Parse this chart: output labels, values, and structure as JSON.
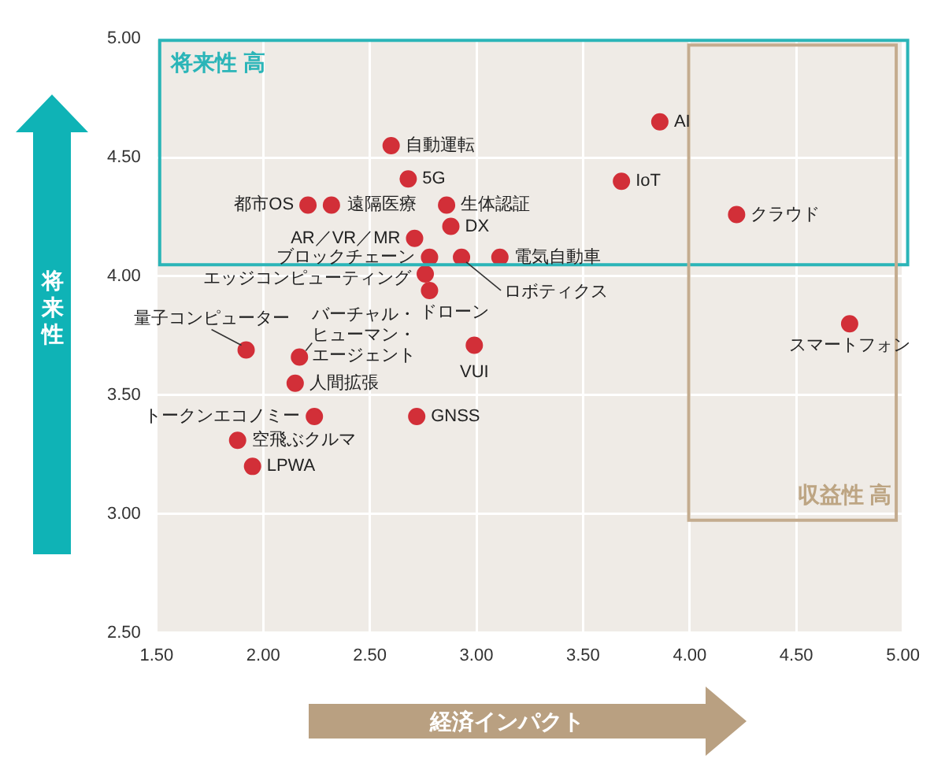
{
  "chart_data": {
    "type": "scatter",
    "xlabel": "経済インパクト",
    "ylabel": "将来性",
    "x": [
      3.86,
      3.68,
      4.22,
      4.75,
      2.6,
      2.68,
      2.21,
      2.32,
      2.86,
      2.88,
      2.71,
      2.78,
      2.93,
      3.11,
      2.76,
      2.78,
      1.92,
      2.17,
      2.99,
      2.15,
      2.24,
      2.72,
      1.88,
      1.95
    ],
    "values": [
      4.65,
      4.4,
      4.26,
      3.8,
      4.55,
      4.41,
      4.3,
      4.3,
      4.3,
      4.21,
      4.16,
      4.08,
      4.08,
      4.08,
      4.01,
      3.94,
      3.69,
      3.66,
      3.71,
      3.55,
      3.41,
      3.41,
      3.31,
      3.2
    ],
    "color": "#d22f38",
    "marker": "circle",
    "grid": true,
    "legend": false,
    "xlim": [
      1.5,
      5
    ],
    "ylim": [
      2.5,
      5
    ],
    "xticks": [
      {
        "value": 1.5,
        "label": "1.50"
      },
      {
        "value": 2,
        "label": "2.00"
      },
      {
        "value": 2.5,
        "label": "2.50"
      },
      {
        "value": 3,
        "label": "3.00"
      },
      {
        "value": 3.5,
        "label": "3.50"
      },
      {
        "value": 4,
        "label": "4.00"
      },
      {
        "value": 4.5,
        "label": "4.50"
      },
      {
        "value": 5,
        "label": "5.00"
      }
    ],
    "yticks": [
      {
        "value": 2.5,
        "label": "2.50"
      },
      {
        "value": 3,
        "label": "3.00"
      },
      {
        "value": 3.5,
        "label": "3.50"
      },
      {
        "value": 4,
        "label": "4.00"
      },
      {
        "value": 4.5,
        "label": "4.50"
      },
      {
        "value": 5,
        "label": "5.00"
      }
    ],
    "annotations": [
      {
        "text": "AI",
        "x": 3.86,
        "y": 4.65
      },
      {
        "text": "IoT",
        "x": 3.68,
        "y": 4.4
      },
      {
        "text": "クラウド",
        "x": 4.22,
        "y": 4.26
      },
      {
        "text": "スマートフォン",
        "x": 4.75,
        "y": 3.8
      },
      {
        "text": "自動運転",
        "x": 2.6,
        "y": 4.55
      },
      {
        "text": "5G",
        "x": 2.68,
        "y": 4.41
      },
      {
        "text": "都市OS",
        "x": 2.21,
        "y": 4.3
      },
      {
        "text": "遠隔医療",
        "x": 2.32,
        "y": 4.3
      },
      {
        "text": "生体認証",
        "x": 2.86,
        "y": 4.3
      },
      {
        "text": "DX",
        "x": 2.88,
        "y": 4.21
      },
      {
        "text": "AR／VR／MR",
        "x": 2.71,
        "y": 4.16
      },
      {
        "text": "ブロックチェーン",
        "x": 2.78,
        "y": 4.08
      },
      {
        "text": "ロボティクス",
        "x": 2.93,
        "y": 4.08
      },
      {
        "text": "電気自動車",
        "x": 3.11,
        "y": 4.08
      },
      {
        "text": "エッジコンピューティング",
        "x": 2.76,
        "y": 4.01
      },
      {
        "text": "ドローン",
        "x": 2.78,
        "y": 3.94
      },
      {
        "text": "量子コンピューター",
        "x": 1.92,
        "y": 3.69
      },
      {
        "text": "バーチャル・ヒューマン・エージェント",
        "x": 2.17,
        "y": 3.66
      },
      {
        "text": "VUI",
        "x": 2.99,
        "y": 3.71
      },
      {
        "text": "人間拡張",
        "x": 2.15,
        "y": 3.55
      },
      {
        "text": "トークンエコノミー",
        "x": 2.24,
        "y": 3.41
      },
      {
        "text": "GNSS",
        "x": 2.72,
        "y": 3.41
      },
      {
        "text": "空飛ぶクルマ",
        "x": 1.88,
        "y": 3.31
      },
      {
        "text": "LPWA",
        "x": 1.95,
        "y": 3.2
      },
      "将来性 高",
      "収益性 高"
    ]
  }
}
